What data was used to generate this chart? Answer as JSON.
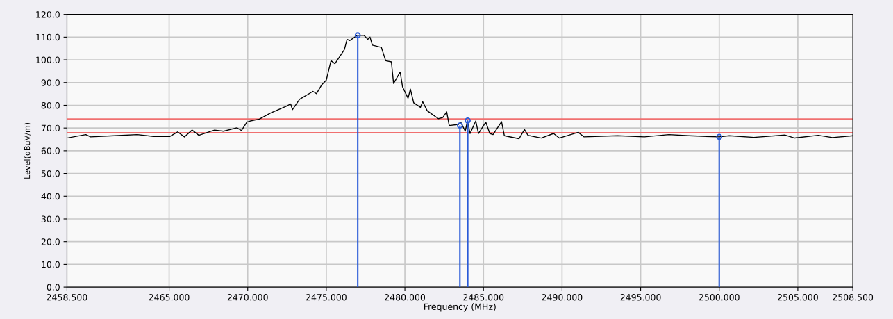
{
  "chart_data": {
    "type": "line",
    "xlabel": "Frequency (MHz)",
    "ylabel": "Level(dBuV/m)",
    "xlim": [
      2458.5,
      2508.5
    ],
    "xticks": [
      {
        "value": 2458.5,
        "label": "2458.500"
      },
      {
        "value": 2465,
        "label": "2465.000"
      },
      {
        "value": 2470,
        "label": "2470.000"
      },
      {
        "value": 2475,
        "label": "2475.000"
      },
      {
        "value": 2480,
        "label": "2480.000"
      },
      {
        "value": 2485,
        "label": "2485.000"
      },
      {
        "value": 2490,
        "label": "2490.000"
      },
      {
        "value": 2495,
        "label": "2495.000"
      },
      {
        "value": 2500,
        "label": "2500.000"
      },
      {
        "value": 2505,
        "label": "2505.000"
      },
      {
        "value": 2508.5,
        "label": "2508.500"
      }
    ],
    "ylim": [
      0,
      120
    ],
    "yticks": [
      {
        "value": 0,
        "label": "0.0"
      },
      {
        "value": 10,
        "label": "10.0"
      },
      {
        "value": 20,
        "label": "20.0"
      },
      {
        "value": 30,
        "label": "30.0"
      },
      {
        "value": 40,
        "label": "40.0"
      },
      {
        "value": 50,
        "label": "50.0"
      },
      {
        "value": 60,
        "label": "60.0"
      },
      {
        "value": 70,
        "label": "70.0"
      },
      {
        "value": 80,
        "label": "80.0"
      },
      {
        "value": 90,
        "label": "90.0"
      },
      {
        "value": 100,
        "label": "100.0"
      },
      {
        "value": 110,
        "label": "110.0"
      },
      {
        "value": 120,
        "label": "120.0"
      }
    ],
    "grid": true,
    "series": [
      {
        "color": "#000000",
        "x": [
          2458.5,
          2459.7,
          2460.0,
          2461.5,
          2462.97,
          2464.0,
          2465.04,
          2465.54,
          2465.97,
          2466.46,
          2466.89,
          2467.89,
          2468.46,
          2469.31,
          2469.6,
          2469.95,
          2470.17,
          2470.74,
          2471.45,
          2472.45,
          2472.73,
          2472.85,
          2473.3,
          2474.15,
          2474.37,
          2474.72,
          2475.0,
          2475.3,
          2475.55,
          2476.15,
          2476.32,
          2476.5,
          2476.96,
          2477.4,
          2477.64,
          2477.78,
          2477.93,
          2478.5,
          2478.78,
          2479.14,
          2479.28,
          2479.7,
          2479.85,
          2480.2,
          2480.35,
          2480.56,
          2480.99,
          2481.13,
          2481.42,
          2482.13,
          2482.41,
          2482.66,
          2482.82,
          2483.41,
          2483.55,
          2483.84,
          2483.98,
          2484.15,
          2484.51,
          2484.68,
          2485.15,
          2485.4,
          2485.61,
          2486.15,
          2486.33,
          2487.26,
          2487.61,
          2487.83,
          2488.68,
          2489.46,
          2489.82,
          2491.03,
          2491.4,
          2493.53,
          2495.24,
          2496.8,
          2498.07,
          2500.0,
          2500.64,
          2502.2,
          2504.2,
          2504.8,
          2506.3,
          2507.2,
          2508.5
        ],
        "values": [
          65.6,
          67.1,
          66.1,
          66.6,
          67.1,
          66.3,
          66.3,
          68.3,
          66.1,
          69.1,
          66.8,
          69.1,
          68.6,
          70.1,
          68.9,
          72.6,
          73.1,
          73.9,
          76.6,
          79.6,
          80.6,
          78.1,
          82.6,
          86.1,
          85.1,
          89.1,
          91.1,
          99.6,
          98.3,
          104.5,
          109.0,
          108.5,
          110.8,
          110.8,
          109.0,
          110.0,
          106.5,
          105.5,
          99.6,
          99.1,
          89.6,
          94.6,
          88.1,
          83.1,
          87.1,
          81.1,
          79.1,
          81.6,
          77.6,
          74.1,
          74.6,
          77.1,
          71.1,
          71.6,
          72.6,
          68.6,
          73.1,
          67.6,
          73.1,
          67.6,
          72.6,
          67.6,
          67.1,
          72.8,
          66.6,
          65.3,
          69.3,
          66.8,
          65.6,
          67.6,
          65.6,
          68.1,
          66.1,
          66.6,
          66.1,
          67.1,
          66.6,
          66.1,
          66.6,
          65.9,
          66.9,
          65.6,
          66.8,
          65.8,
          66.6
        ]
      },
      {
        "type": "lollipop",
        "color": "#2a5bd7",
        "marker": "circle",
        "x": [
          2477.0,
          2483.5,
          2484.0,
          2500.0
        ],
        "values": [
          110.8,
          71.1,
          73.3,
          66.1
        ]
      }
    ],
    "ref_lines": [
      {
        "axis": "y",
        "value": 74,
        "label": null,
        "color": "#f07070"
      },
      {
        "axis": "y",
        "value": 68,
        "label": null,
        "color": "#f07070"
      }
    ]
  }
}
